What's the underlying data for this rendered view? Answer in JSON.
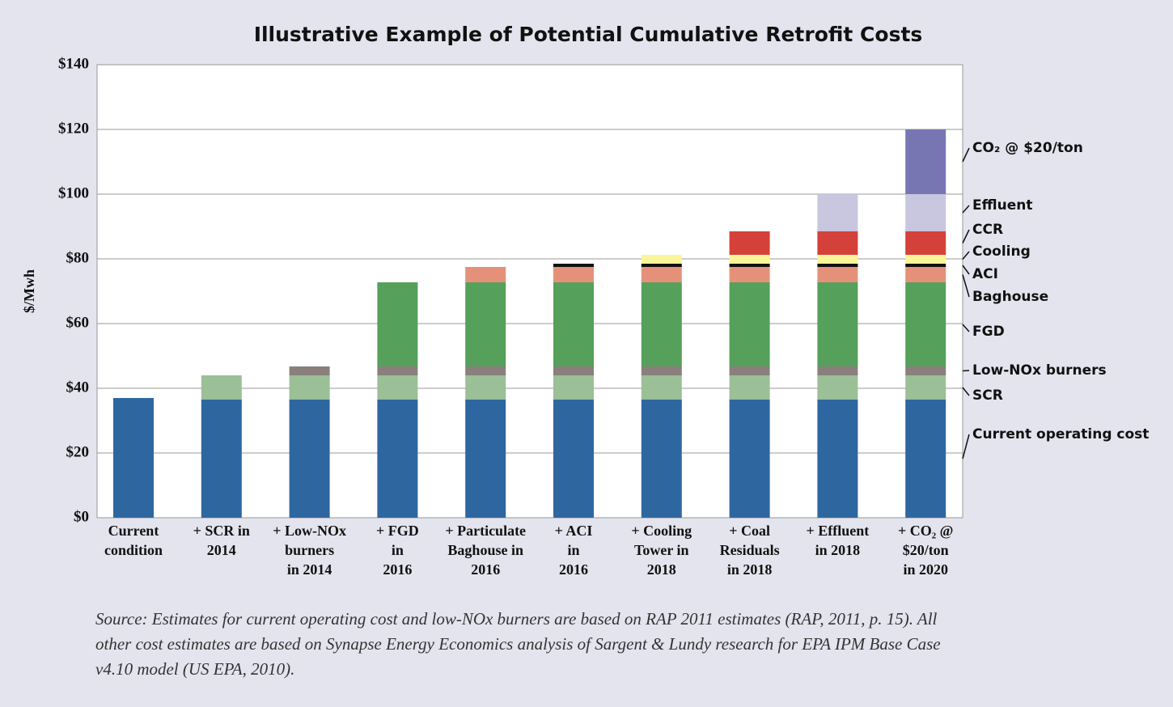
{
  "chart_data": {
    "type": "bar",
    "stacked": true,
    "title": "Illustrative Example of Potential Cumulative Retrofit Costs",
    "ylabel": "$/Mwh",
    "categories": [
      "Current\ncondition",
      "+ SCR in\n2014",
      "+ Low-NOx\nburners\nin 2014",
      "+ FGD\nin\n2016",
      "+ Particulate\nBaghouse in\n2016",
      "+ ACI\nin\n2016",
      "+ Cooling\nTower in\n2018",
      "+ Coal\nResiduals\nin 2018",
      "+ Effluent\nin 2018",
      "+ CO₂ @\n$20/ton\nin 2020"
    ],
    "series": [
      {
        "name": "Current operating cost",
        "color": "#2e67a0",
        "values": [
          37,
          36.5,
          36.5,
          36.5,
          36.5,
          36.5,
          36.5,
          36.5,
          36.5,
          36.5
        ]
      },
      {
        "name": "SCR",
        "color": "#9bbf96",
        "values": [
          null,
          7.5,
          7.5,
          7.5,
          7.5,
          7.5,
          7.5,
          7.5,
          7.5,
          7.5
        ]
      },
      {
        "name": "Low-NOx burners",
        "color": "#8a7f7c",
        "values": [
          null,
          null,
          2.75,
          2.75,
          2.75,
          2.75,
          2.75,
          2.75,
          2.75,
          2.75
        ]
      },
      {
        "name": "FGD",
        "color": "#55a05a",
        "values": [
          null,
          null,
          null,
          26,
          26,
          26,
          26,
          26,
          26,
          26
        ]
      },
      {
        "name": "Baghouse",
        "color": "#e5917a",
        "values": [
          null,
          null,
          null,
          null,
          4.75,
          4.75,
          4.75,
          4.75,
          4.75,
          4.75
        ]
      },
      {
        "name": "ACI",
        "color": "#111111",
        "values": [
          null,
          null,
          null,
          null,
          null,
          1,
          1,
          1,
          1,
          1
        ]
      },
      {
        "name": "Cooling",
        "color": "#fbf59a",
        "values": [
          null,
          null,
          null,
          null,
          null,
          null,
          2.75,
          2.75,
          2.75,
          2.75
        ]
      },
      {
        "name": "CCR",
        "color": "#d4413a",
        "values": [
          null,
          null,
          null,
          null,
          null,
          null,
          null,
          7.25,
          7.25,
          7.25
        ]
      },
      {
        "name": "Effluent",
        "color": "#c9c6e0",
        "values": [
          null,
          null,
          null,
          null,
          null,
          null,
          null,
          null,
          11.5,
          11.5
        ]
      },
      {
        "name": "CO₂ @ $20/ton",
        "color": "#7776b3",
        "values": [
          null,
          null,
          null,
          null,
          null,
          null,
          null,
          null,
          null,
          20
        ]
      }
    ],
    "ylim": [
      0,
      140
    ],
    "yticks": [
      {
        "value": 0,
        "label": "$0"
      },
      {
        "value": 20,
        "label": "$20"
      },
      {
        "value": 40,
        "label": "$40"
      },
      {
        "value": 60,
        "label": "$60"
      },
      {
        "value": 80,
        "label": "$80"
      },
      {
        "value": 100,
        "label": "$100"
      },
      {
        "value": 120,
        "label": "$120"
      },
      {
        "value": 140,
        "label": "$140"
      }
    ],
    "grid": true,
    "note": "Source: Estimates for current operating cost and low-NOx burners are based on RAP 2011 estimates (RAP, 2011, p. 15). All other cost estimates are based on Synapse Energy Economics analysis of Sargent & Lundy research for EPA IPM Base Case v4.10 model (US EPA, 2010)."
  }
}
